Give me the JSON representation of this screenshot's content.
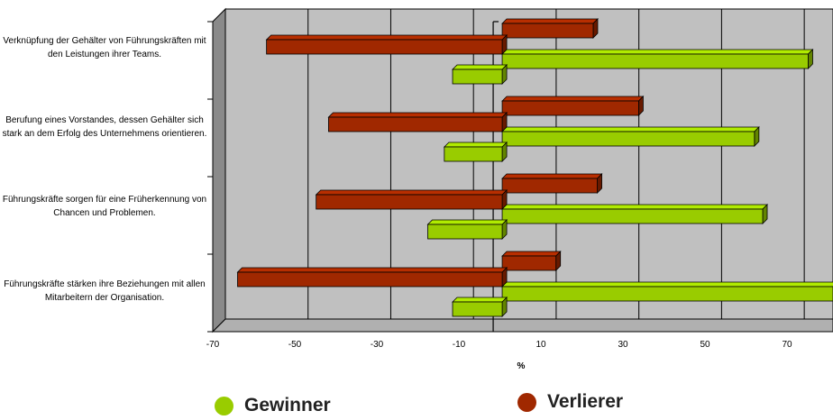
{
  "chart_data": {
    "type": "bar",
    "orientation": "horizontal",
    "categories": [
      "Verknüpfung der Gehälter von Führungskräften mit den Leistungen ihrer Teams.",
      "Berufung eines Vorstandes, dessen Gehälter sich stark an dem Erfolg des Unternehmens orientieren.",
      "Führungskräfte sorgen für eine Früherkennung von Chancen und Problemen.",
      "Führungskräfte stärken ihre Beziehungen mit allen Mitarbeitern der Organisation."
    ],
    "series": [
      {
        "name": "Verlierer",
        "color": "#a02800",
        "values": [
          {
            "positive": 22,
            "negative": -57
          },
          {
            "positive": 33,
            "negative": -42
          },
          {
            "positive": 23,
            "negative": -45
          },
          {
            "positive": 13,
            "negative": -64
          }
        ]
      },
      {
        "name": "Gewinner",
        "color": "#99cc00",
        "values": [
          {
            "positive": 74,
            "negative": -12
          },
          {
            "positive": 61,
            "negative": -14
          },
          {
            "positive": 63,
            "negative": -18
          },
          {
            "positive": 80,
            "negative": -12
          }
        ]
      }
    ],
    "xticks": [
      "-70",
      "-50",
      "-30",
      "-10",
      "10",
      "30",
      "50",
      "70"
    ],
    "xlabel": "%",
    "xlim": [
      -70,
      80
    ],
    "grid": true,
    "legend_position": "bottom"
  },
  "legend": [
    {
      "label": "Gewinner",
      "color": "#99cc00"
    },
    {
      "label": "Verlierer",
      "color": "#a02800"
    }
  ]
}
